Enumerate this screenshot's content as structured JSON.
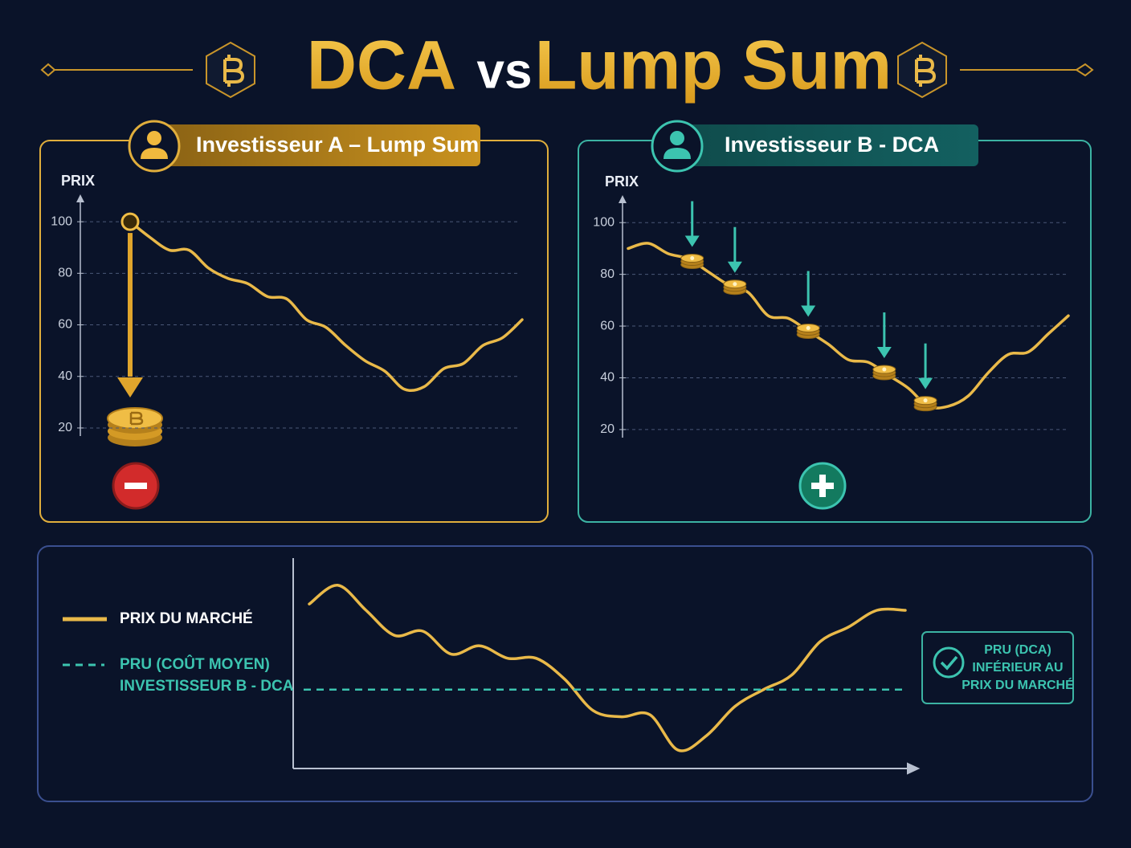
{
  "title": {
    "left": "DCA",
    "middle": "vs",
    "right": "Lump Sum"
  },
  "chart_data": [
    {
      "type": "line",
      "title": "Investisseur A – Lump Sum",
      "y_label": "PRIX",
      "color": "#e9b949",
      "categories": [
        null,
        null,
        null,
        null,
        null,
        null,
        null,
        null,
        null,
        null,
        null,
        null,
        null,
        null,
        null,
        null,
        null,
        null,
        null,
        null,
        null
      ],
      "values": [
        100,
        94,
        89,
        89,
        82,
        78,
        76,
        71,
        70,
        62,
        59,
        52,
        46,
        42,
        35,
        36,
        43,
        45,
        52,
        55,
        62
      ],
      "buys": [
        100
      ],
      "ylim": [
        15,
        110
      ],
      "yticks": [
        20,
        40,
        60,
        80,
        100
      ],
      "grid": true
    },
    {
      "type": "line",
      "title": "Investisseur B - DCA",
      "y_label": "PRIX",
      "color": "#e9b949",
      "categories": [
        null,
        null,
        null,
        null,
        null,
        null,
        null,
        null,
        null,
        null,
        null,
        null,
        null,
        null,
        null,
        null,
        null,
        null,
        null,
        null,
        null,
        null,
        null
      ],
      "values": [
        90,
        92,
        88,
        86,
        81,
        76,
        73,
        64,
        63,
        58,
        53,
        47,
        46,
        41,
        36,
        29,
        29,
        33,
        42,
        49,
        50,
        57,
        64
      ],
      "buys": [
        85,
        75,
        58,
        42,
        30
      ],
      "ylim": [
        15,
        110
      ],
      "yticks": [
        20,
        40,
        60,
        80,
        100
      ],
      "grid": true
    },
    {
      "type": "line",
      "categories": [
        null,
        null,
        null,
        null,
        null,
        null,
        null,
        null,
        null,
        null,
        null,
        null,
        null,
        null,
        null,
        null,
        null,
        null,
        null,
        null,
        null,
        null
      ],
      "series": [
        {
          "name": [
            "PRIX DU MARCHÉ"
          ],
          "color": "#e9b949",
          "values": [
            78,
            87,
            75,
            63,
            65,
            54,
            58,
            52,
            52,
            42,
            27,
            24,
            25,
            8,
            15,
            29,
            37,
            44,
            60,
            67,
            75,
            75
          ]
        }
      ],
      "hlines": [
        {
          "name": [
            "PRU (COÛT MOYEN)",
            "INVESTISSEUR B - DCA"
          ],
          "color": "#3cc4b0",
          "value": 37,
          "dashed": true
        }
      ],
      "annotation": [
        "PRU (DCA)",
        "INFÉRIEUR AU",
        "PRIX DU MARCHÉ"
      ],
      "ylim": [
        0,
        100
      ]
    }
  ]
}
